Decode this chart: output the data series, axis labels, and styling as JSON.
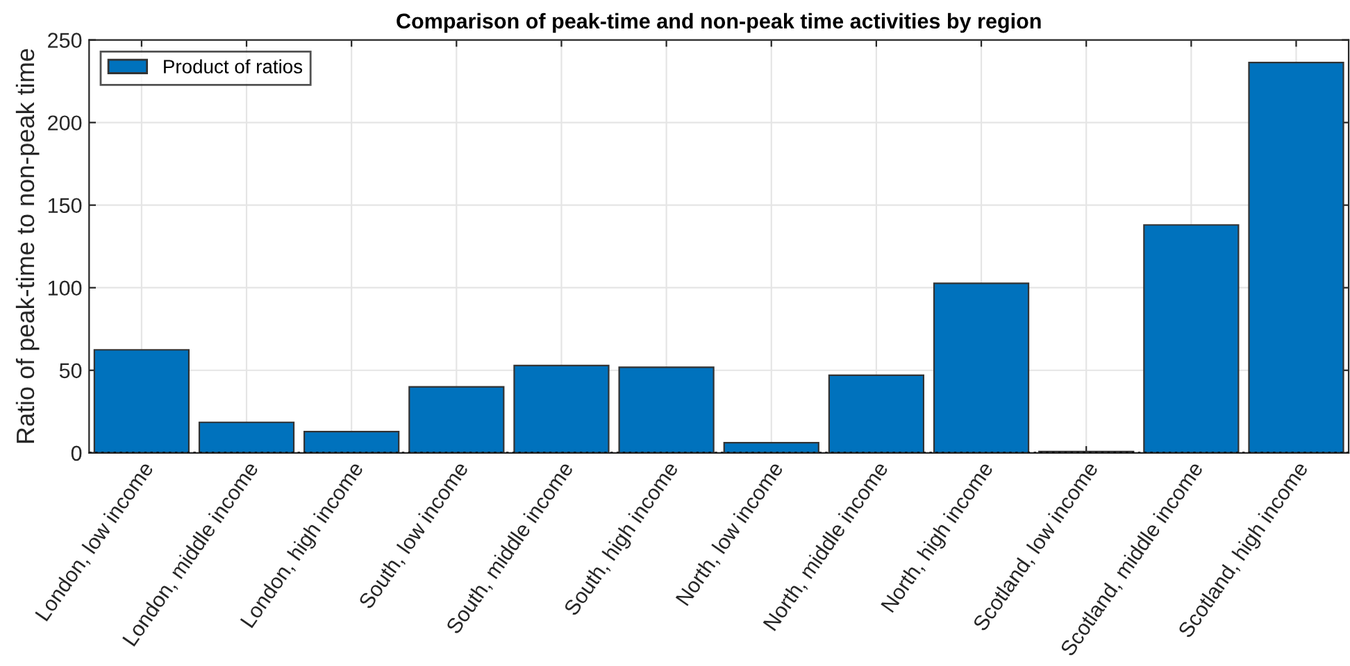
{
  "chart_data": {
    "type": "bar",
    "title": "Comparison of peak-time and non-peak time activities by region",
    "ylabel": "Ratio of peak-time to non-peak time",
    "categories": [
      "London, low income",
      "London, middle income",
      "London, high income",
      "South, low income",
      "South, middle income",
      "South, high income",
      "North, low income",
      "North, middle income",
      "North, high income",
      "Scotland, low income",
      "Scotland, middle income",
      "Scotland, high income"
    ],
    "series": [
      {
        "name": "Product of ratios",
        "color": "#0072bd",
        "values": [
          62.4,
          18.5,
          12.9,
          40.0,
          52.9,
          51.8,
          6.2,
          47.0,
          102.7,
          0.8,
          138,
          236.3
        ]
      }
    ],
    "ylim": [
      0,
      250
    ],
    "yticks": [
      0,
      50,
      100,
      150,
      200,
      250
    ],
    "ref_lines": [
      {
        "axis": "y",
        "value": 0,
        "color": "#000000",
        "line_style": "dotted"
      }
    ],
    "grid": true,
    "legend": "top left"
  }
}
